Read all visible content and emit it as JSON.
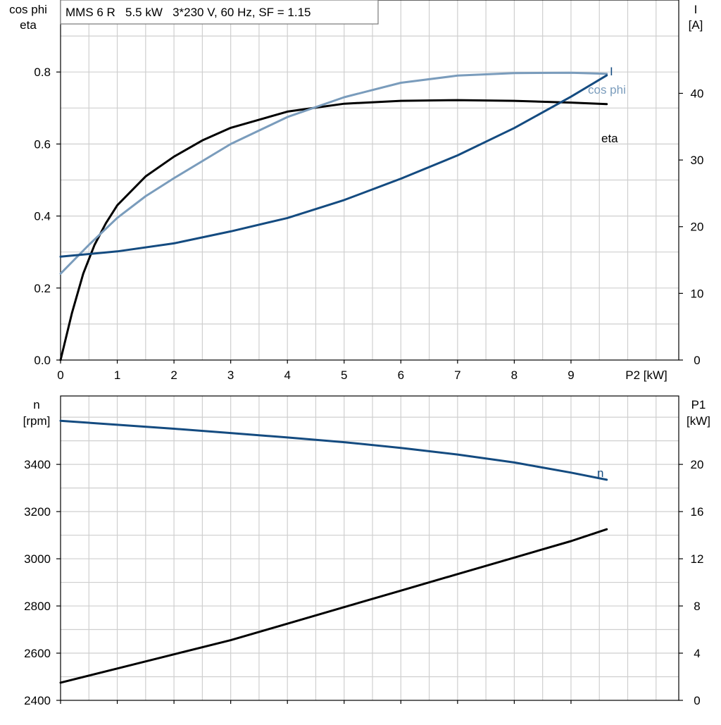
{
  "chart_data": [
    {
      "type": "line",
      "title": "MMS 6 R   5.5 kW   3*230 V, 60 Hz, SF = 1.15",
      "xlabel": "P2 [kW]",
      "ylabel_left": [
        "cos phi",
        "eta"
      ],
      "ylabel_right": [
        "I",
        "[A]"
      ],
      "xlim": [
        0,
        10.9
      ],
      "ylim_left": [
        0,
        1.0
      ],
      "ylim_right": [
        0,
        54
      ],
      "x_ticks": [
        0,
        1,
        2,
        3,
        4,
        5,
        6,
        7,
        8,
        9
      ],
      "y_ticks_left": [
        0.0,
        0.2,
        0.4,
        0.6,
        0.8
      ],
      "y_ticks_left_labels": [
        "0.0",
        "0.2",
        "0.4",
        "0.6",
        "0.8"
      ],
      "y_ticks_right": [
        0,
        10,
        20,
        30,
        40
      ],
      "grid": true,
      "series": [
        {
          "name": "eta",
          "axis": "left",
          "color": "#000000",
          "x": [
            0,
            0.2,
            0.4,
            0.6,
            0.8,
            1.0,
            1.5,
            2.0,
            2.5,
            3.0,
            4.0,
            5.0,
            6.0,
            7.0,
            8.0,
            9.0,
            9.63
          ],
          "y": [
            0.0,
            0.13,
            0.24,
            0.32,
            0.38,
            0.43,
            0.51,
            0.565,
            0.61,
            0.645,
            0.69,
            0.712,
            0.72,
            0.722,
            0.72,
            0.715,
            0.711
          ]
        },
        {
          "name": "cos phi",
          "axis": "left",
          "color": "#7a9cbc",
          "x": [
            0,
            0.5,
            1.0,
            1.5,
            2.0,
            3.0,
            4.0,
            5.0,
            6.0,
            7.0,
            8.0,
            9.0,
            9.63
          ],
          "y": [
            0.24,
            0.32,
            0.395,
            0.455,
            0.505,
            0.6,
            0.675,
            0.73,
            0.77,
            0.79,
            0.797,
            0.798,
            0.795
          ]
        },
        {
          "name": "I",
          "axis": "right",
          "color": "#144b80",
          "x": [
            0,
            1,
            2,
            3,
            4,
            5,
            6,
            7,
            8,
            9,
            9.63
          ],
          "y": [
            15.5,
            16.3,
            17.5,
            19.3,
            21.3,
            24.0,
            27.2,
            30.7,
            34.8,
            39.5,
            42.7
          ]
        }
      ]
    },
    {
      "type": "line",
      "title": "",
      "xlabel": "",
      "ylabel_left": [
        "n",
        "[rpm]"
      ],
      "ylabel_right": [
        "P1",
        "[kW]"
      ],
      "xlim": [
        0,
        10.9
      ],
      "ylim_left": [
        2400,
        3690
      ],
      "ylim_right": [
        0,
        25.8
      ],
      "x_ticks": [
        0,
        1,
        2,
        3,
        4,
        5,
        6,
        7,
        8,
        9
      ],
      "y_ticks_left": [
        2400,
        2600,
        2800,
        3000,
        3200,
        3400
      ],
      "y_ticks_right": [
        0,
        4,
        8,
        12,
        16,
        20
      ],
      "grid": true,
      "series": [
        {
          "name": "n",
          "axis": "left",
          "color": "#144b80",
          "x": [
            0,
            1,
            2,
            3,
            4,
            5,
            6,
            7,
            8,
            9,
            9.63
          ],
          "y": [
            3585,
            3568,
            3551,
            3533,
            3514,
            3494,
            3470,
            3442,
            3408,
            3365,
            3335
          ]
        },
        {
          "name": "",
          "axis": "right",
          "color": "#000000",
          "x": [
            0,
            1,
            2,
            3,
            4,
            5,
            6,
            7,
            8,
            9,
            9.63
          ],
          "y": [
            1.5,
            2.7,
            3.9,
            5.1,
            6.5,
            7.9,
            9.3,
            10.7,
            12.1,
            13.5,
            14.5
          ]
        }
      ]
    }
  ]
}
